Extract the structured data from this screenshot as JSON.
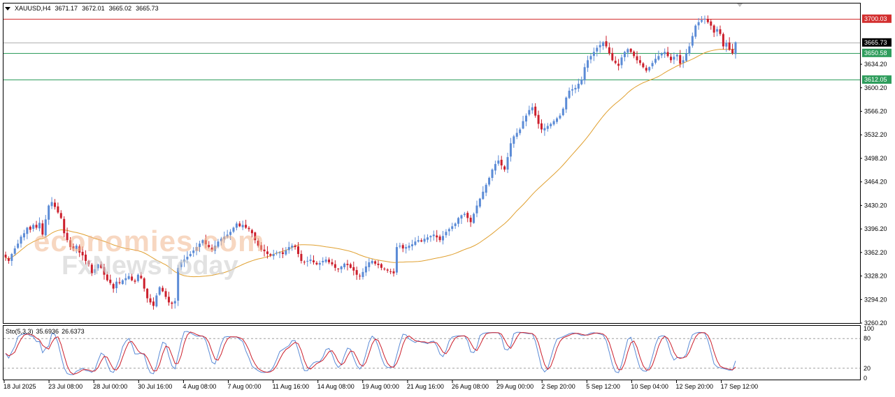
{
  "header": {
    "symbol": "XAUUSD,H4",
    "open": "3671.17",
    "high": "3672.01",
    "low": "3665.02",
    "close": "3665.73"
  },
  "watermark": {
    "line1": "economies.com",
    "line2": "FxNewsToday"
  },
  "oscillator": {
    "name": "Sto(5,3,3)",
    "main_value": "35.6936",
    "signal_value": "26.6373",
    "levels": [
      "100",
      "80",
      "20",
      "0"
    ]
  },
  "chart_data": {
    "type": "candlestick",
    "symbol": "XAUUSD",
    "timeframe": "H4",
    "ylim": [
      3260.2,
      3722
    ],
    "y_ticks": [
      "3634.20",
      "3600.20",
      "3566.20",
      "3532.20",
      "3498.20",
      "3464.20",
      "3430.20",
      "3396.20",
      "3362.20",
      "3328.20",
      "3294.20",
      "3260.20"
    ],
    "x_ticks": [
      "18 Jul 2025",
      "23 Jul 08:00",
      "28 Jul 00:00",
      "30 Jul 16:00",
      "4 Aug 08:00",
      "7 Aug 00:00",
      "11 Aug 16:00",
      "14 Aug 08:00",
      "19 Aug 00:00",
      "21 Aug 16:00",
      "26 Aug 08:00",
      "29 Aug 00:00",
      "2 Sep 20:00",
      "5 Sep 12:00",
      "10 Sep 04:00",
      "12 Sep 20:00",
      "17 Sep 12:00"
    ],
    "horizontal_levels": [
      {
        "value": 3700.03,
        "label": "3700.03",
        "color": "#d32f2f"
      },
      {
        "value": 3665.73,
        "label": "3665.73",
        "color": "#000000"
      },
      {
        "value": 3650.58,
        "label": "3650.58",
        "color": "#2e9d5c"
      },
      {
        "value": 3612.05,
        "label": "3612.05",
        "color": "#2e9d5c"
      }
    ],
    "bull_color": "#5b8bd6",
    "bear_color": "#cc1f2c",
    "ma_color": "#e0a030",
    "closes": [
      3355,
      3350,
      3360,
      3368,
      3375,
      3385,
      3390,
      3398,
      3395,
      3402,
      3398,
      3405,
      3388,
      3410,
      3430,
      3435,
      3428,
      3420,
      3412,
      3390,
      3380,
      3370,
      3368,
      3372,
      3362,
      3358,
      3350,
      3345,
      3332,
      3338,
      3345,
      3340,
      3330,
      3322,
      3318,
      3310,
      3320,
      3318,
      3322,
      3325,
      3328,
      3322,
      3320,
      3330,
      3325,
      3310,
      3296,
      3290,
      3285,
      3300,
      3312,
      3306,
      3298,
      3290,
      3288,
      3292,
      3340,
      3348,
      3352,
      3356,
      3360,
      3365,
      3370,
      3375,
      3380,
      3374,
      3370,
      3366,
      3372,
      3378,
      3382,
      3385,
      3388,
      3392,
      3398,
      3404,
      3400,
      3402,
      3398,
      3396,
      3390,
      3380,
      3372,
      3366,
      3364,
      3360,
      3358,
      3360,
      3362,
      3362,
      3360,
      3365,
      3370,
      3372,
      3370,
      3360,
      3350,
      3348,
      3350,
      3352,
      3348,
      3345,
      3347,
      3350,
      3352,
      3348,
      3345,
      3340,
      3338,
      3342,
      3346,
      3344,
      3340,
      3336,
      3330,
      3328,
      3334,
      3342,
      3348,
      3350,
      3346,
      3344,
      3340,
      3338,
      3336,
      3334,
      3332,
      3370,
      3372,
      3368,
      3370,
      3372,
      3374,
      3378,
      3380,
      3378,
      3382,
      3384,
      3386,
      3388,
      3384,
      3380,
      3386,
      3392,
      3396,
      3400,
      3404,
      3412,
      3416,
      3418,
      3412,
      3406,
      3418,
      3430,
      3440,
      3450,
      3460,
      3470,
      3482,
      3490,
      3495,
      3488,
      3482,
      3500,
      3520,
      3530,
      3535,
      3540,
      3552,
      3560,
      3568,
      3572,
      3560,
      3548,
      3540,
      3542,
      3545,
      3548,
      3552,
      3556,
      3560,
      3570,
      3586,
      3596,
      3598,
      3600,
      3606,
      3612,
      3630,
      3640,
      3646,
      3652,
      3658,
      3662,
      3666,
      3660,
      3650,
      3640,
      3636,
      3632,
      3644,
      3652,
      3656,
      3652,
      3646,
      3640,
      3636,
      3630,
      3625,
      3630,
      3636,
      3642,
      3646,
      3650,
      3652,
      3646,
      3640,
      3645,
      3648,
      3635,
      3640,
      3650,
      3660,
      3675,
      3690,
      3695,
      3698,
      3700,
      3695,
      3690,
      3680,
      3685,
      3678,
      3660,
      3665,
      3655,
      3650,
      3666
    ]
  }
}
